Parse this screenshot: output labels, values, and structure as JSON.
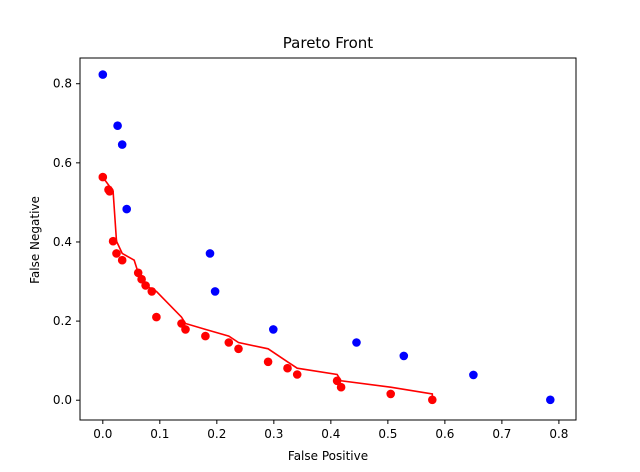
{
  "chart_data": {
    "type": "scatter",
    "title": "Pareto Front",
    "xlabel": "False Positive",
    "ylabel": "False Negative",
    "xlim": [
      -0.04,
      0.83
    ],
    "ylim": [
      -0.05,
      0.865
    ],
    "xticks": [
      "0.0",
      "0.1",
      "0.2",
      "0.3",
      "0.4",
      "0.5",
      "0.6",
      "0.7",
      "0.8"
    ],
    "xtick_values": [
      0.0,
      0.1,
      0.2,
      0.3,
      0.4,
      0.5,
      0.6,
      0.7,
      0.8
    ],
    "yticks": [
      "0.0",
      "0.2",
      "0.4",
      "0.6",
      "0.8"
    ],
    "ytick_values": [
      0.0,
      0.2,
      0.4,
      0.6,
      0.8
    ],
    "grid": false,
    "series": [
      {
        "color": "#0000ff",
        "points": [
          [
            0.0,
            0.823
          ],
          [
            0.026,
            0.694
          ],
          [
            0.034,
            0.646
          ],
          [
            0.042,
            0.483
          ],
          [
            0.188,
            0.371
          ],
          [
            0.197,
            0.275
          ],
          [
            0.299,
            0.179
          ],
          [
            0.445,
            0.146
          ],
          [
            0.528,
            0.112
          ],
          [
            0.65,
            0.064
          ],
          [
            0.785,
            0.001
          ]
        ]
      },
      {
        "color": "#ff0000",
        "points": [
          [
            0.0,
            0.564
          ],
          [
            0.01,
            0.532
          ],
          [
            0.012,
            0.528
          ],
          [
            0.018,
            0.402
          ],
          [
            0.024,
            0.371
          ],
          [
            0.034,
            0.354
          ],
          [
            0.062,
            0.322
          ],
          [
            0.068,
            0.306
          ],
          [
            0.075,
            0.29
          ],
          [
            0.086,
            0.275
          ],
          [
            0.094,
            0.21
          ],
          [
            0.138,
            0.194
          ],
          [
            0.145,
            0.179
          ],
          [
            0.18,
            0.162
          ],
          [
            0.221,
            0.146
          ],
          [
            0.238,
            0.13
          ],
          [
            0.29,
            0.097
          ],
          [
            0.324,
            0.081
          ],
          [
            0.341,
            0.065
          ],
          [
            0.411,
            0.049
          ],
          [
            0.418,
            0.033
          ],
          [
            0.505,
            0.016
          ],
          [
            0.578,
            0.001
          ]
        ]
      }
    ],
    "step_line": {
      "color": "#ff0000",
      "points": [
        [
          0.0,
          0.564
        ],
        [
          0.018,
          0.528
        ],
        [
          0.024,
          0.402
        ],
        [
          0.034,
          0.371
        ],
        [
          0.055,
          0.354
        ],
        [
          0.062,
          0.322
        ],
        [
          0.068,
          0.306
        ],
        [
          0.075,
          0.29
        ],
        [
          0.094,
          0.275
        ],
        [
          0.138,
          0.21
        ],
        [
          0.145,
          0.194
        ],
        [
          0.18,
          0.179
        ],
        [
          0.221,
          0.162
        ],
        [
          0.238,
          0.146
        ],
        [
          0.29,
          0.13
        ],
        [
          0.324,
          0.097
        ],
        [
          0.341,
          0.081
        ],
        [
          0.411,
          0.065
        ],
        [
          0.418,
          0.049
        ],
        [
          0.505,
          0.033
        ],
        [
          0.578,
          0.016
        ],
        [
          0.578,
          0.001
        ]
      ]
    }
  }
}
